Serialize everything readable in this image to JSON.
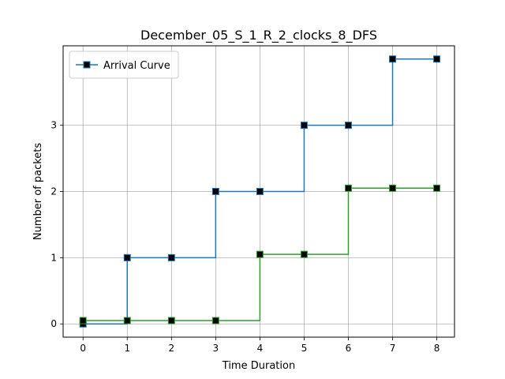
{
  "chart_data": {
    "type": "line",
    "title": "December_05_S_1_R_2_clocks_8_DFS",
    "xlabel": "Time Duration",
    "ylabel": "Number of packets",
    "xlim": [
      -0.45,
      8.4
    ],
    "ylim": [
      -0.2,
      4.2
    ],
    "x_ticks": [
      0,
      1,
      2,
      3,
      4,
      5,
      6,
      7,
      8
    ],
    "y_ticks": [
      0,
      1,
      2,
      3
    ],
    "grid": true,
    "legend_position": "top-left",
    "series": [
      {
        "name": "Arrival Curve",
        "color": "#1f77b4",
        "step": "post",
        "marker": "square",
        "x": [
          0,
          1,
          2,
          3,
          4,
          5,
          6,
          7,
          8
        ],
        "y": [
          0,
          1,
          1,
          2,
          2,
          3,
          3,
          4,
          4
        ]
      },
      {
        "color": "#2ca02c",
        "step": "post",
        "marker": "square",
        "x": [
          0,
          1,
          2,
          3,
          4,
          5,
          6,
          7,
          8
        ],
        "y": [
          0.05,
          0.05,
          0.05,
          0.05,
          1.05,
          1.05,
          2.05,
          2.05,
          2.05
        ]
      }
    ]
  }
}
